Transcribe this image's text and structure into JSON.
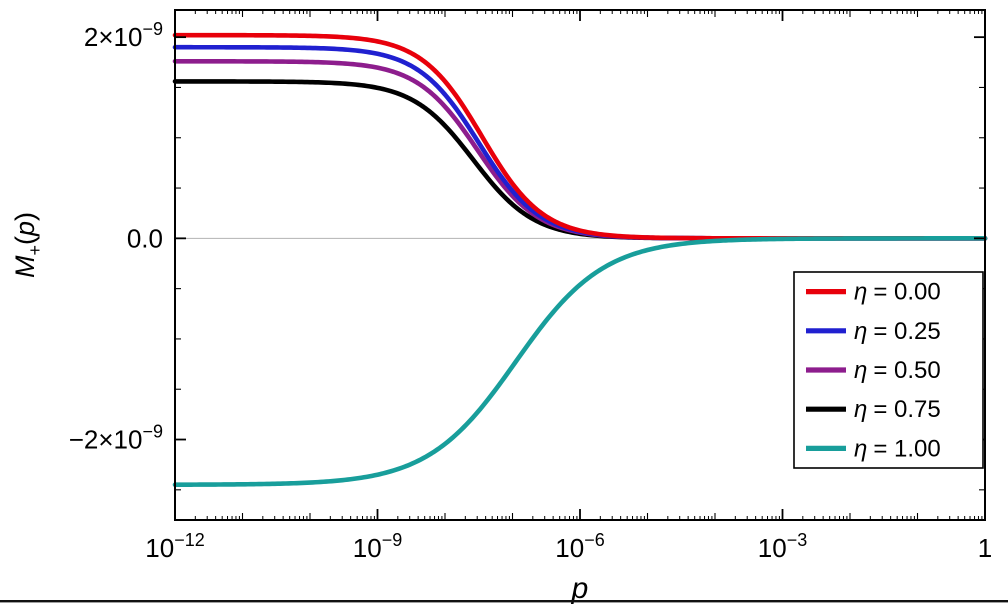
{
  "figure": {
    "background": "#ffffff",
    "bottom_rule_color": "#111111"
  },
  "chart_data": {
    "type": "line",
    "title": "",
    "xlabel": "p",
    "ylabel": "M₊(p)",
    "ylabel_parts": {
      "var": "M",
      "sub": "+",
      "open": "(",
      "arg": "p",
      "close": ")"
    },
    "xscale": "log",
    "x_range_log10": [
      -12,
      0
    ],
    "y_range": [
      -2.8e-09,
      2.27e-09
    ],
    "values_scale": 1e-09,
    "grid": false,
    "zero_line": {
      "show": true,
      "color": "#b3b3b3"
    },
    "frame_color": "#000000",
    "legend_position": "right-lower",
    "x_ticks": [
      {
        "log10": -12,
        "main": "10",
        "exp": "−12"
      },
      {
        "log10": -9,
        "main": "10",
        "exp": "−9"
      },
      {
        "log10": -6,
        "main": "10",
        "exp": "−6"
      },
      {
        "log10": -3,
        "main": "10",
        "exp": "−3"
      },
      {
        "log10": 0,
        "main": "1",
        "exp": ""
      }
    ],
    "y_ticks": [
      {
        "value": 2e-09,
        "main": "2×10",
        "exp": "−9"
      },
      {
        "value": 0,
        "main": "0.0",
        "exp": ""
      },
      {
        "value": -2e-09,
        "main": "−2×10",
        "exp": "−9"
      }
    ],
    "y_minor_step_e9": 0.5,
    "sample_log10_p": [
      -12,
      -11,
      -10,
      -9,
      -8,
      -7,
      -6,
      -5,
      -4,
      -3,
      -2,
      -1,
      0
    ],
    "series": [
      {
        "name": "η = 0.00",
        "eta": 0.0,
        "color": "#e8000b",
        "plateau_e9": 2.02,
        "midpoint_log10_p": -7.45,
        "width_decades": 0.45,
        "sample_values_e9": [
          2.02,
          2.02,
          2.01,
          1.96,
          1.56,
          0.54,
          0.08,
          0.01,
          0,
          0,
          0,
          0,
          0
        ]
      },
      {
        "name": "η = 0.25",
        "eta": 0.25,
        "color": "#2020d0",
        "plateau_e9": 1.9,
        "midpoint_log10_p": -7.5,
        "width_decades": 0.45,
        "sample_values_e9": [
          1.9,
          1.9,
          1.89,
          1.83,
          1.43,
          0.47,
          0.07,
          0.01,
          0,
          0,
          0,
          0,
          0
        ]
      },
      {
        "name": "η = 0.50",
        "eta": 0.5,
        "color": "#8d1d8d",
        "plateau_e9": 1.76,
        "midpoint_log10_p": -7.52,
        "width_decades": 0.45,
        "sample_values_e9": [
          1.76,
          1.76,
          1.75,
          1.7,
          1.34,
          0.42,
          0.06,
          0.01,
          0,
          0,
          0,
          0,
          0
        ]
      },
      {
        "name": "η = 0.75",
        "eta": 0.75,
        "color": "#000000",
        "plateau_e9": 1.56,
        "midpoint_log10_p": -7.58,
        "width_decades": 0.45,
        "sample_values_e9": [
          1.56,
          1.56,
          1.55,
          1.5,
          1.22,
          0.34,
          0.04,
          0.01,
          0,
          0,
          0,
          0,
          0
        ]
      },
      {
        "name": "η = 1.00",
        "eta": 1.0,
        "color": "#189e9b",
        "plateau_e9": -2.45,
        "midpoint_log10_p": -6.95,
        "width_decades": 0.65,
        "sample_values_e9": [
          -2.45,
          -2.45,
          -2.44,
          -2.35,
          -2.04,
          -1.27,
          -0.46,
          -0.12,
          -0.03,
          -0.01,
          0,
          0,
          0
        ]
      }
    ],
    "legend": {
      "labels": [
        "η = 0.00",
        "η = 0.25",
        "η = 0.50",
        "η = 0.75",
        "η = 1.00"
      ]
    }
  }
}
